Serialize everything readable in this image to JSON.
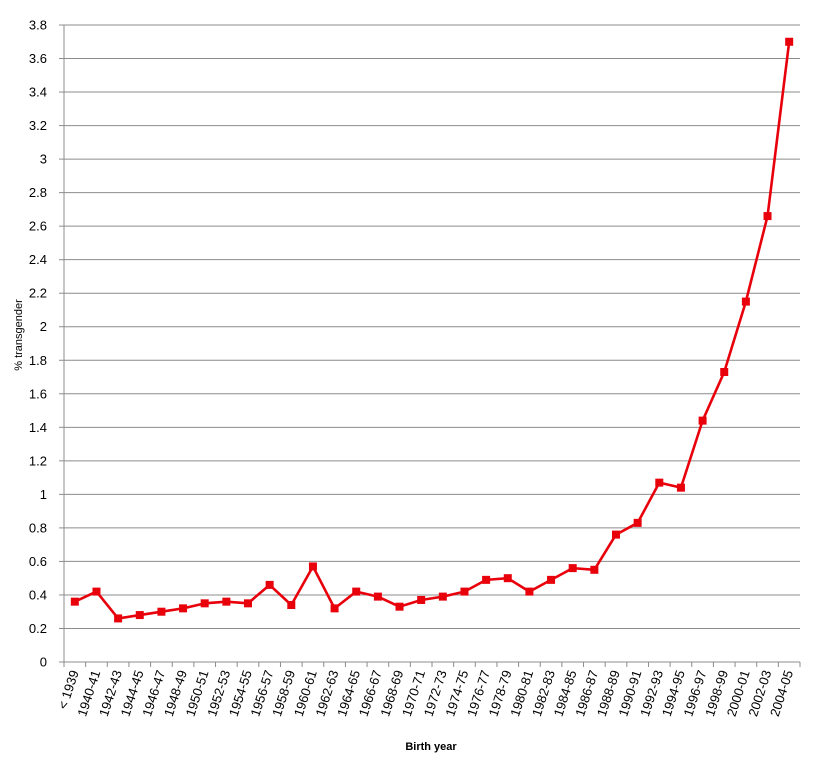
{
  "chart_data": {
    "type": "line",
    "title": "",
    "xlabel": "Birth year",
    "ylabel": "% transgender",
    "ylim": [
      0,
      3.8
    ],
    "ytick_step": 0.2,
    "yticks": [
      "0",
      "0.2",
      "0.4",
      "0.6",
      "0.8",
      "1",
      "1.2",
      "1.4",
      "1.6",
      "1.8",
      "2",
      "2.2",
      "2.4",
      "2.6",
      "2.8",
      "3",
      "3.2",
      "3.4",
      "3.6",
      "3.8"
    ],
    "grid": true,
    "legend": "none",
    "categories": [
      "< 1939",
      "1940-41",
      "1942-43",
      "1944-45",
      "1946-47",
      "1948-49",
      "1950-51",
      "1952-53",
      "1954-55",
      "1956-57",
      "1958-59",
      "1960-61",
      "1962-63",
      "1964-65",
      "1966-67",
      "1968-69",
      "1970-71",
      "1972-73",
      "1974-75",
      "1976-77",
      "1978-79",
      "1980-81",
      "1982-83",
      "1984-85",
      "1986-87",
      "1988-89",
      "1990-91",
      "1992-93",
      "1994-95",
      "1996-97",
      "1998-99",
      "2000-01",
      "2002-03",
      "2004-05"
    ],
    "series": [
      {
        "color": "#e8000b",
        "values": [
          0.36,
          0.42,
          0.26,
          0.28,
          0.3,
          0.32,
          0.35,
          0.36,
          0.35,
          0.46,
          0.34,
          0.57,
          0.32,
          0.42,
          0.39,
          0.33,
          0.37,
          0.39,
          0.42,
          0.49,
          0.5,
          0.42,
          0.49,
          0.56,
          0.55,
          0.76,
          0.83,
          1.07,
          1.04,
          1.44,
          1.73,
          2.15,
          2.66,
          3.7
        ]
      }
    ]
  }
}
